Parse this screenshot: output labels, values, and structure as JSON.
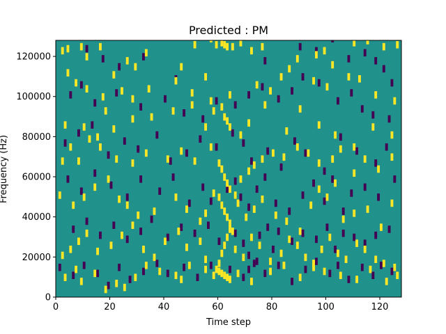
{
  "chart_data": {
    "type": "heatmap",
    "title": "Predicted : PM",
    "xlabel": "Time step",
    "ylabel": "Frequency (Hz)",
    "xlim": [
      0,
      128
    ],
    "ylim": [
      0,
      128000
    ],
    "x_ticks": [
      0,
      20,
      40,
      60,
      80,
      100,
      120
    ],
    "y_ticks": [
      0,
      20000,
      40000,
      60000,
      80000,
      100000,
      120000
    ],
    "x_tick_labels": [
      "0",
      "20",
      "40",
      "60",
      "80",
      "100",
      "120"
    ],
    "y_tick_labels": [
      "0",
      "20000",
      "40000",
      "60000",
      "80000",
      "100000",
      "120000"
    ],
    "colors": {
      "background": "#21918c",
      "high": "#fde725",
      "low": "#440154"
    },
    "grid": false,
    "cell_width": 1,
    "cell_height": 3657,
    "background_value": 0,
    "high_cells": [
      [
        2,
        121000
      ],
      [
        4,
        122000
      ],
      [
        9,
        123000
      ],
      [
        11,
        118000
      ],
      [
        16,
        123000
      ],
      [
        21,
        109000
      ],
      [
        26,
        116000
      ],
      [
        29,
        113000
      ],
      [
        33,
        120000
      ],
      [
        46,
        113000
      ],
      [
        51,
        124000
      ],
      [
        54,
        128000
      ],
      [
        57,
        127000
      ],
      [
        59,
        124000
      ],
      [
        61,
        125000
      ],
      [
        62,
        124000
      ],
      [
        63,
        123000
      ],
      [
        65,
        123000
      ],
      [
        68,
        125000
      ],
      [
        72,
        121000
      ],
      [
        76,
        123000
      ],
      [
        89,
        117000
      ],
      [
        96,
        119000
      ],
      [
        99,
        121000
      ],
      [
        102,
        114000
      ],
      [
        110,
        125000
      ],
      [
        115,
        126000
      ],
      [
        121,
        123000
      ],
      [
        126,
        124000
      ],
      [
        4,
        110000
      ],
      [
        7,
        105000
      ],
      [
        11,
        102000
      ],
      [
        17,
        98000
      ],
      [
        24,
        101000
      ],
      [
        28,
        97000
      ],
      [
        34,
        102000
      ],
      [
        44,
        106000
      ],
      [
        50,
        100000
      ],
      [
        55,
        108000
      ],
      [
        57,
        96000
      ],
      [
        64,
        99000
      ],
      [
        74,
        104000
      ],
      [
        79,
        101000
      ],
      [
        83,
        108000
      ],
      [
        86,
        112000
      ],
      [
        95,
        106000
      ],
      [
        100,
        103000
      ],
      [
        108,
        108000
      ],
      [
        112,
        107000
      ],
      [
        118,
        99000
      ],
      [
        125,
        96000
      ],
      [
        3,
        84000
      ],
      [
        10,
        83000
      ],
      [
        15,
        78000
      ],
      [
        18,
        91000
      ],
      [
        21,
        82000
      ],
      [
        28,
        87000
      ],
      [
        35,
        88000
      ],
      [
        43,
        91000
      ],
      [
        50,
        94000
      ],
      [
        55,
        83000
      ],
      [
        58,
        91000
      ],
      [
        61,
        93000
      ],
      [
        62,
        88000
      ],
      [
        63,
        86000
      ],
      [
        64,
        83000
      ],
      [
        68,
        79000
      ],
      [
        71,
        85000
      ],
      [
        77,
        94000
      ],
      [
        85,
        81000
      ],
      [
        90,
        92000
      ],
      [
        97,
        84000
      ],
      [
        103,
        79000
      ],
      [
        110,
        73000
      ],
      [
        117,
        83000
      ],
      [
        124,
        79000
      ],
      [
        2,
        66000
      ],
      [
        5,
        73000
      ],
      [
        8,
        66000
      ],
      [
        12,
        77000
      ],
      [
        16,
        73000
      ],
      [
        22,
        67000
      ],
      [
        28,
        65000
      ],
      [
        33,
        70000
      ],
      [
        41,
        67000
      ],
      [
        46,
        71000
      ],
      [
        51,
        66000
      ],
      [
        57,
        73000
      ],
      [
        60,
        65000
      ],
      [
        61,
        62000
      ],
      [
        62,
        58000
      ],
      [
        63,
        55000
      ],
      [
        64,
        52000
      ],
      [
        66,
        49000
      ],
      [
        68,
        57000
      ],
      [
        71,
        61000
      ],
      [
        73,
        64000
      ],
      [
        76,
        67000
      ],
      [
        80,
        70000
      ],
      [
        84,
        68000
      ],
      [
        89,
        73000
      ],
      [
        93,
        70000
      ],
      [
        97,
        65000
      ],
      [
        102,
        67000
      ],
      [
        105,
        72000
      ],
      [
        110,
        60000
      ],
      [
        114,
        67000
      ],
      [
        119,
        62000
      ],
      [
        124,
        68000
      ],
      [
        1,
        49000
      ],
      [
        6,
        44000
      ],
      [
        10,
        48000
      ],
      [
        14,
        53000
      ],
      [
        19,
        57000
      ],
      [
        23,
        47000
      ],
      [
        26,
        44000
      ],
      [
        30,
        39000
      ],
      [
        36,
        41000
      ],
      [
        44,
        48000
      ],
      [
        48,
        42000
      ],
      [
        53,
        36000
      ],
      [
        55,
        40000
      ],
      [
        58,
        50000
      ],
      [
        60,
        48000
      ],
      [
        61,
        44000
      ],
      [
        62,
        41000
      ],
      [
        63,
        38000
      ],
      [
        64,
        35000
      ],
      [
        65,
        31000
      ],
      [
        67,
        45000
      ],
      [
        70,
        38000
      ],
      [
        73,
        42000
      ],
      [
        76,
        47000
      ],
      [
        81,
        39000
      ],
      [
        85,
        36000
      ],
      [
        90,
        31000
      ],
      [
        94,
        44000
      ],
      [
        97,
        52000
      ],
      [
        100,
        48000
      ],
      [
        103,
        55000
      ],
      [
        106,
        37000
      ],
      [
        110,
        40000
      ],
      [
        115,
        42000
      ],
      [
        120,
        33000
      ],
      [
        124,
        45000
      ],
      [
        2,
        19000
      ],
      [
        5,
        22000
      ],
      [
        8,
        26000
      ],
      [
        11,
        30000
      ],
      [
        15,
        21000
      ],
      [
        20,
        24000
      ],
      [
        24,
        29000
      ],
      [
        28,
        34000
      ],
      [
        32,
        22000
      ],
      [
        36,
        18000
      ],
      [
        40,
        26000
      ],
      [
        45,
        31000
      ],
      [
        48,
        23000
      ],
      [
        53,
        26000
      ],
      [
        55,
        17000
      ],
      [
        59,
        12000
      ],
      [
        60,
        15000
      ],
      [
        61,
        20000
      ],
      [
        62,
        24000
      ],
      [
        63,
        28000
      ],
      [
        64,
        32000
      ],
      [
        66,
        22000
      ],
      [
        69,
        18000
      ],
      [
        72,
        28000
      ],
      [
        75,
        24000
      ],
      [
        79,
        16000
      ],
      [
        83,
        20000
      ],
      [
        86,
        27000
      ],
      [
        89,
        24000
      ],
      [
        92,
        18000
      ],
      [
        95,
        15000
      ],
      [
        98,
        22000
      ],
      [
        101,
        28000
      ],
      [
        104,
        20000
      ],
      [
        107,
        17000
      ],
      [
        111,
        25000
      ],
      [
        114,
        22000
      ],
      [
        118,
        17000
      ],
      [
        121,
        15000
      ],
      [
        125,
        13000
      ],
      [
        3,
        8000
      ],
      [
        7,
        12000
      ],
      [
        9,
        6000
      ],
      [
        14,
        10000
      ],
      [
        18,
        2000
      ],
      [
        22,
        5000
      ],
      [
        25,
        3000
      ],
      [
        29,
        8000
      ],
      [
        33,
        14000
      ],
      [
        38,
        11000
      ],
      [
        44,
        9000
      ],
      [
        46,
        7000
      ],
      [
        49,
        14000
      ],
      [
        55,
        12000
      ],
      [
        58,
        9000
      ],
      [
        60,
        11000
      ],
      [
        61,
        10000
      ],
      [
        62,
        9000
      ],
      [
        63,
        8000
      ],
      [
        64,
        7000
      ],
      [
        67,
        10000
      ],
      [
        72,
        6000
      ],
      [
        79,
        11000
      ],
      [
        84,
        14000
      ],
      [
        90,
        8000
      ],
      [
        95,
        13000
      ],
      [
        99,
        11000
      ],
      [
        105,
        9000
      ],
      [
        111,
        7000
      ],
      [
        116,
        12000
      ],
      [
        122,
        6000
      ],
      [
        126,
        9000
      ]
    ],
    "low_cells": [
      [
        11,
        122000
      ],
      [
        17,
        117000
      ],
      [
        23,
        113000
      ],
      [
        32,
        118000
      ],
      [
        44,
        107000
      ],
      [
        56,
        128000
      ],
      [
        61,
        126000
      ],
      [
        77,
        116000
      ],
      [
        90,
        123000
      ],
      [
        96,
        121000
      ],
      [
        102,
        127000
      ],
      [
        108,
        117000
      ],
      [
        114,
        120000
      ],
      [
        118,
        116000
      ],
      [
        121,
        112000
      ],
      [
        124,
        105000
      ],
      [
        5,
        99000
      ],
      [
        9,
        104000
      ],
      [
        14,
        95000
      ],
      [
        22,
        100000
      ],
      [
        31,
        93000
      ],
      [
        40,
        97000
      ],
      [
        47,
        90000
      ],
      [
        54,
        87000
      ],
      [
        59,
        96000
      ],
      [
        66,
        94000
      ],
      [
        71,
        99000
      ],
      [
        76,
        103000
      ],
      [
        82,
        97000
      ],
      [
        87,
        101000
      ],
      [
        91,
        108000
      ],
      [
        97,
        105000
      ],
      [
        104,
        96000
      ],
      [
        109,
        100000
      ],
      [
        113,
        92000
      ],
      [
        117,
        89000
      ],
      [
        123,
        87000
      ],
      [
        3,
        75000
      ],
      [
        8,
        80000
      ],
      [
        13,
        84000
      ],
      [
        19,
        69000
      ],
      [
        25,
        76000
      ],
      [
        30,
        72000
      ],
      [
        37,
        79000
      ],
      [
        42,
        66000
      ],
      [
        48,
        70000
      ],
      [
        53,
        77000
      ],
      [
        59,
        73000
      ],
      [
        65,
        80000
      ],
      [
        69,
        75000
      ],
      [
        72,
        66000
      ],
      [
        78,
        71000
      ],
      [
        83,
        63000
      ],
      [
        88,
        76000
      ],
      [
        92,
        70000
      ],
      [
        99,
        61000
      ],
      [
        105,
        78000
      ],
      [
        111,
        71000
      ],
      [
        118,
        65000
      ],
      [
        122,
        73000
      ],
      [
        4,
        57000
      ],
      [
        9,
        51000
      ],
      [
        14,
        60000
      ],
      [
        20,
        54000
      ],
      [
        26,
        48000
      ],
      [
        31,
        57000
      ],
      [
        38,
        51000
      ],
      [
        43,
        58000
      ],
      [
        49,
        45000
      ],
      [
        54,
        53000
      ],
      [
        57,
        46000
      ],
      [
        63,
        52000
      ],
      [
        66,
        56000
      ],
      [
        68,
        48000
      ],
      [
        71,
        43000
      ],
      [
        74,
        52000
      ],
      [
        77,
        58000
      ],
      [
        81,
        45000
      ],
      [
        86,
        41000
      ],
      [
        91,
        49000
      ],
      [
        95,
        55000
      ],
      [
        99,
        46000
      ],
      [
        102,
        57000
      ],
      [
        106,
        41000
      ],
      [
        109,
        50000
      ],
      [
        114,
        53000
      ],
      [
        119,
        48000
      ],
      [
        125,
        57000
      ],
      [
        6,
        32000
      ],
      [
        11,
        36000
      ],
      [
        16,
        29000
      ],
      [
        21,
        34000
      ],
      [
        26,
        27000
      ],
      [
        31,
        31000
      ],
      [
        35,
        37000
      ],
      [
        41,
        28000
      ],
      [
        46,
        33000
      ],
      [
        51,
        30000
      ],
      [
        56,
        34000
      ],
      [
        60,
        26000
      ],
      [
        66,
        30000
      ],
      [
        69,
        25000
      ],
      [
        71,
        19000
      ],
      [
        73,
        15000
      ],
      [
        75,
        29000
      ],
      [
        78,
        33000
      ],
      [
        80,
        22000
      ],
      [
        82,
        31000
      ],
      [
        87,
        26000
      ],
      [
        91,
        30000
      ],
      [
        96,
        27000
      ],
      [
        100,
        33000
      ],
      [
        103,
        22000
      ],
      [
        106,
        30000
      ],
      [
        110,
        28000
      ],
      [
        114,
        25000
      ],
      [
        118,
        29000
      ],
      [
        123,
        32000
      ],
      [
        1,
        13000
      ],
      [
        6,
        9000
      ],
      [
        10,
        14000
      ],
      [
        15,
        10000
      ],
      [
        19,
        4000
      ],
      [
        23,
        13000
      ],
      [
        27,
        7000
      ],
      [
        32,
        11000
      ],
      [
        37,
        15000
      ],
      [
        41,
        10000
      ],
      [
        47,
        13000
      ],
      [
        52,
        8000
      ],
      [
        57,
        14000
      ],
      [
        64,
        12000
      ],
      [
        69,
        8000
      ],
      [
        71,
        12000
      ],
      [
        74,
        16000
      ],
      [
        77,
        10000
      ],
      [
        82,
        14000
      ],
      [
        87,
        6000
      ],
      [
        92,
        12000
      ],
      [
        96,
        16000
      ],
      [
        101,
        10000
      ],
      [
        104,
        14000
      ],
      [
        108,
        7000
      ],
      [
        113,
        13000
      ],
      [
        117,
        9000
      ],
      [
        120,
        14000
      ],
      [
        124,
        11000
      ]
    ]
  }
}
